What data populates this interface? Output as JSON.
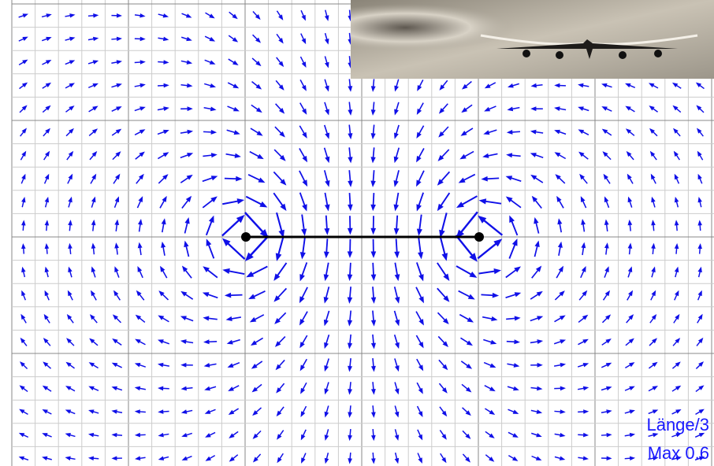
{
  "labels": {
    "scale": "Länge/3",
    "max": "Max 0.6"
  }
}
